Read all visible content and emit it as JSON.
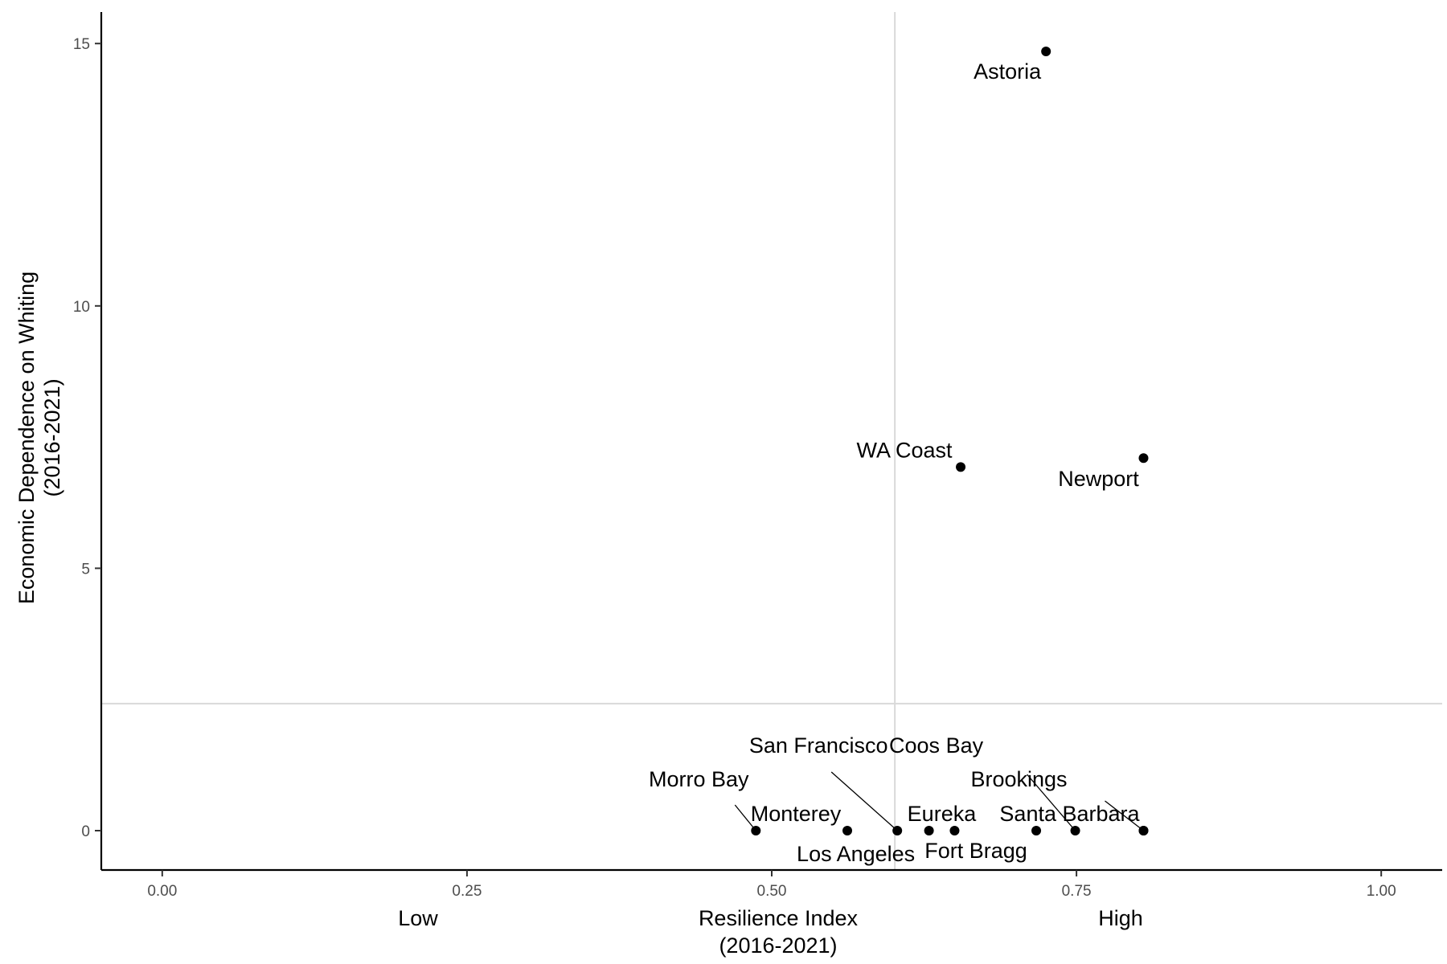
{
  "chart_data": {
    "type": "scatter",
    "xlabel": "Resilience Index\n(2016-2021)",
    "ylabel": "Economic Dependence on Whiting\n(2016-2021)",
    "x_side_labels": {
      "low": "Low",
      "high": "High"
    },
    "xlim": [
      -0.05,
      1.05
    ],
    "ylim": [
      -0.75,
      15.6
    ],
    "xticks": [
      0,
      0.25,
      0.5,
      0.75,
      1
    ],
    "xtick_labels": [
      "0.00",
      "0.25",
      "0.50",
      "0.75",
      "1.00"
    ],
    "yticks": [
      0,
      5,
      10,
      15
    ],
    "ytick_labels": [
      "0",
      "5",
      "10",
      "15"
    ],
    "reference_lines": {
      "x": 0.601,
      "y": 2.42
    },
    "grid": false,
    "points": [
      {
        "label": "Astoria",
        "x": 0.725,
        "y": 14.85
      },
      {
        "label": "Newport",
        "x": 0.805,
        "y": 7.1
      },
      {
        "label": "WA Coast",
        "x": 0.655,
        "y": 6.93
      },
      {
        "label": "Morro Bay",
        "x": 0.487,
        "y": 0
      },
      {
        "label": "Monterey",
        "x": 0.562,
        "y": 0
      },
      {
        "label": "San Francisco",
        "x": 0.603,
        "y": 0
      },
      {
        "label": "Los Angeles",
        "x": 0.629,
        "y": 0
      },
      {
        "label": "Eureka",
        "x": 0.65,
        "y": 0
      },
      {
        "label": "Fort Bragg",
        "x": 0.717,
        "y": 0
      },
      {
        "label": "Coos Bay",
        "x": 0.749,
        "y": 0
      },
      {
        "label": "Brookings",
        "x": 0.805,
        "y": 0
      },
      {
        "label": "Santa Barbara",
        "x": 0.805,
        "y": 0
      }
    ],
    "colors": {
      "points": "#000000",
      "reference_lines": "#d9d9d9",
      "axes": "#000000"
    }
  }
}
